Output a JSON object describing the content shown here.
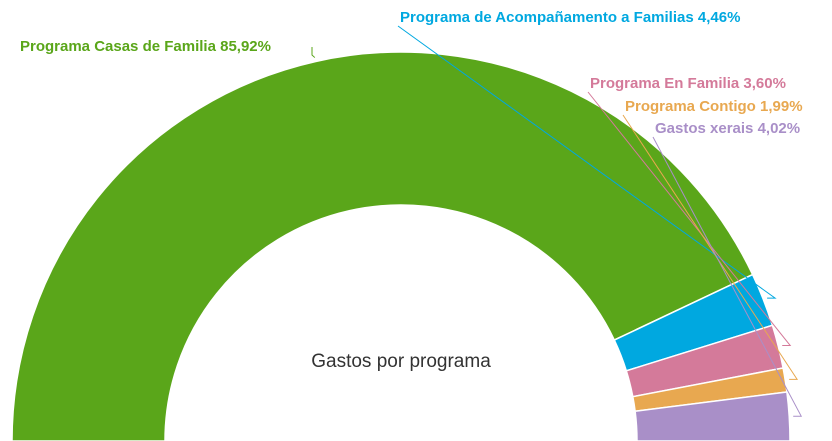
{
  "chart_data": {
    "type": "semi-donut",
    "title": "Gastos por programa",
    "categories": [
      "Programa Casas de Familia",
      "Programa de Acompañamento a Familias",
      "Programa En Familia",
      "Programa Contigo",
      "Gastos xerais"
    ],
    "values": [
      85.92,
      4.46,
      3.6,
      1.99,
      4.02
    ],
    "value_labels": [
      "85,92%",
      "4,46%",
      "3,60%",
      "1,99%",
      "4,02%"
    ],
    "colors": [
      "#5aa61a",
      "#00a8e0",
      "#d47a9a",
      "#e8a850",
      "#a98fc8"
    ]
  }
}
